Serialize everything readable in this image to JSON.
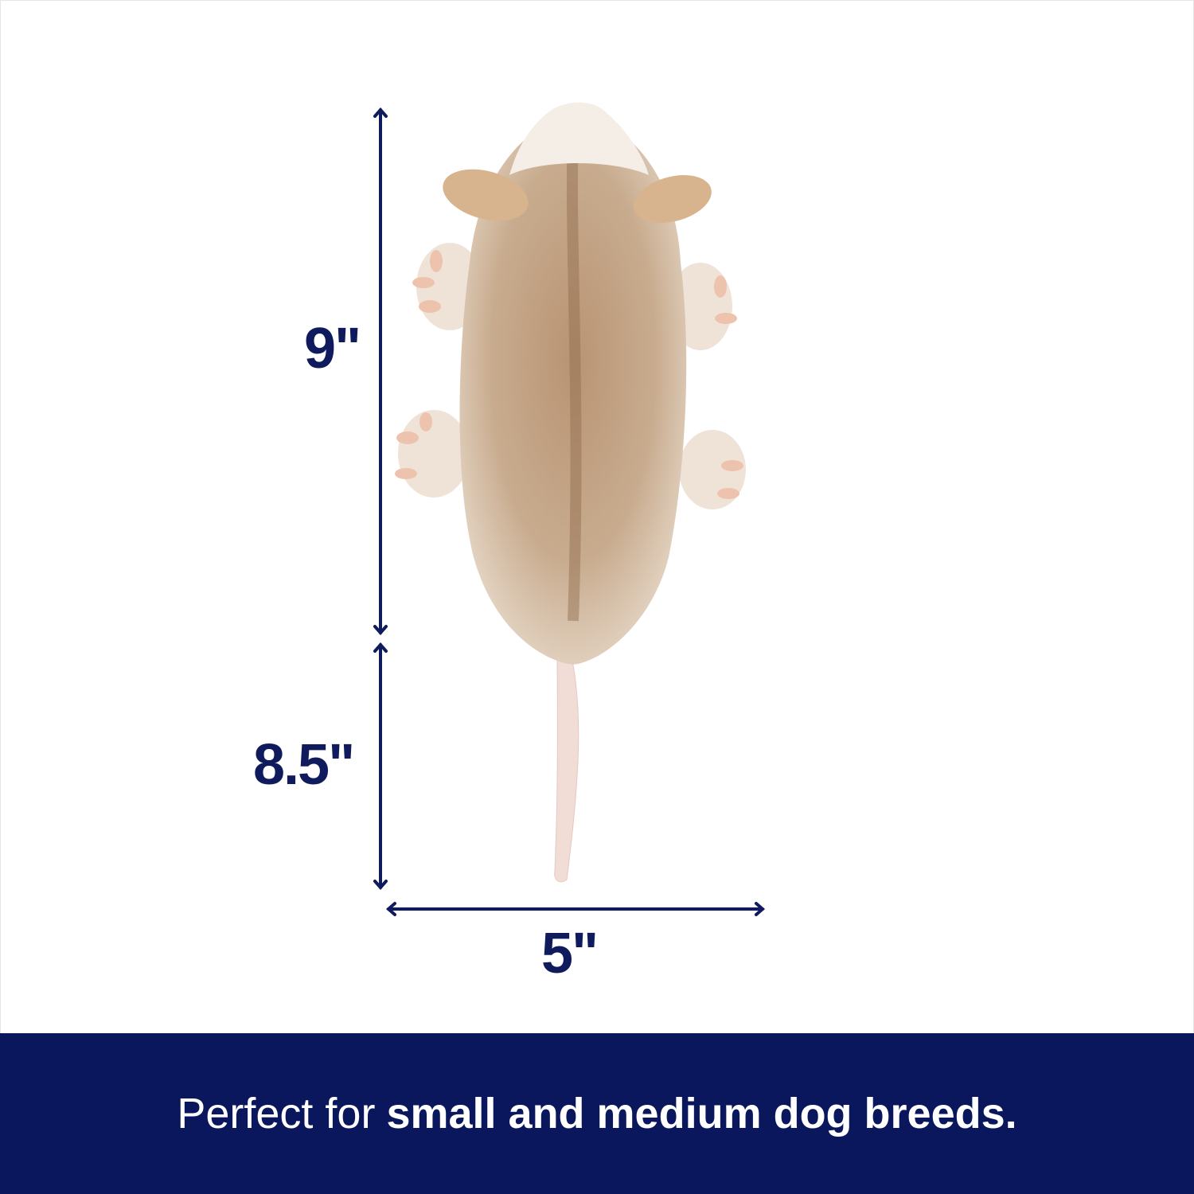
{
  "dimensions": {
    "body_length": "9\"",
    "tail_length": "8.5\"",
    "width": "5\""
  },
  "banner": {
    "lead": "Perfect for",
    "emphasis": "small and medium dog breeds."
  },
  "colors": {
    "navy": "#0f1b5c",
    "banner_bg": "#0a175c",
    "fur": "#c9ab8c",
    "tail": "#f1ddd6"
  },
  "product_image": "plush opossum dog toy"
}
